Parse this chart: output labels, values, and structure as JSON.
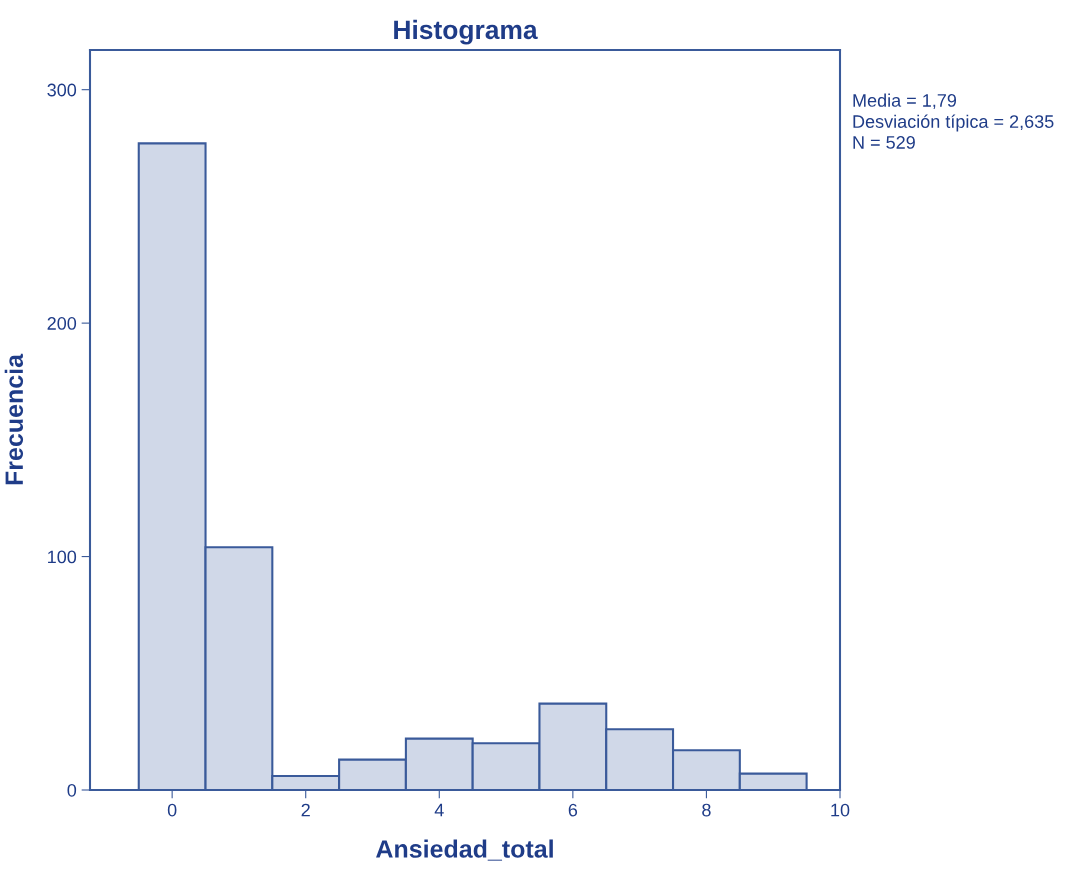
{
  "chart_data": {
    "type": "histogram",
    "title": "Histograma",
    "xlabel": "Ansiedad_total",
    "ylabel": "Frecuencia",
    "bins": [
      -0.5,
      0.5,
      1.5,
      2.5,
      3.5,
      4.5,
      5.5,
      6.5,
      7.5,
      8.5,
      9.5
    ],
    "values": [
      277,
      104,
      6,
      13,
      22,
      20,
      37,
      26,
      17,
      7
    ],
    "color": "#d0d8e8",
    "xlim": [
      -1.23,
      10
    ],
    "ylim": [
      0,
      317
    ],
    "xticks": [
      0,
      2,
      4,
      6,
      8,
      10
    ],
    "yticks": [
      0,
      100,
      200,
      300
    ],
    "grid": false,
    "annotations": [
      "Media = 1,79",
      "Desviación típica = 2,635",
      "N = 529"
    ]
  }
}
